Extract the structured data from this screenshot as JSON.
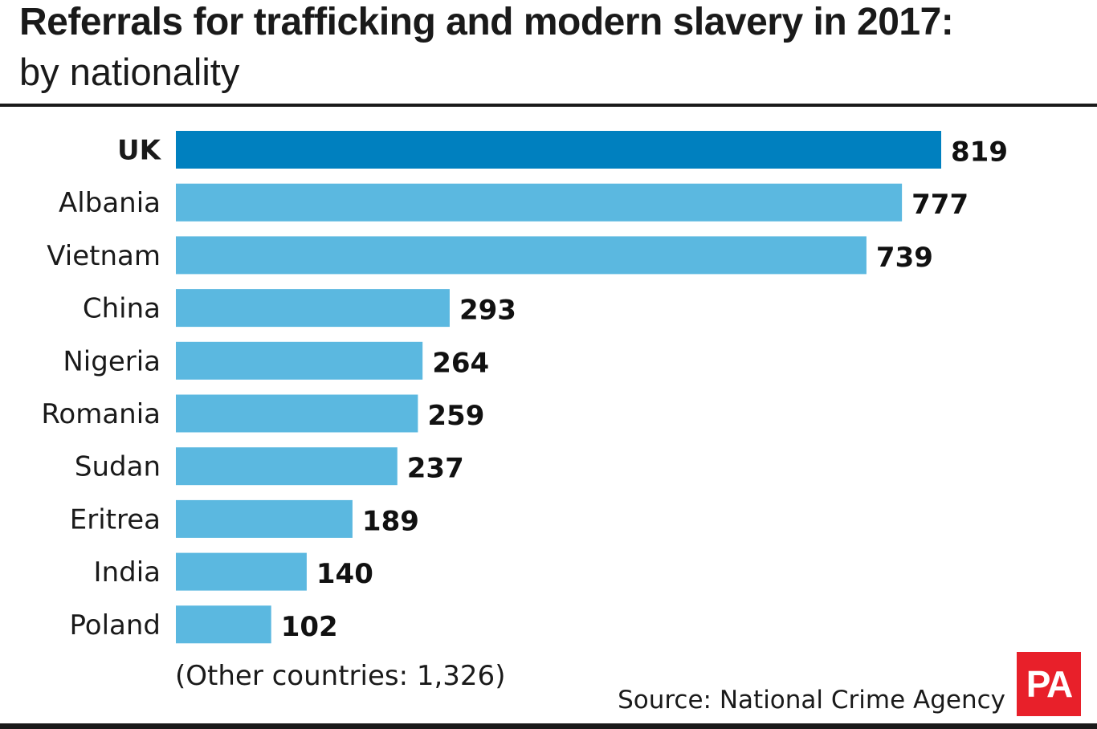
{
  "header": {
    "title": "Referrals for trafficking and modern slavery in 2017:",
    "subtitle": "by nationality"
  },
  "chart_data": {
    "type": "bar",
    "orientation": "horizontal",
    "title": "Referrals for trafficking and modern slavery in 2017:",
    "subtitle": "by nationality",
    "categories": [
      "UK",
      "Albania",
      "Vietnam",
      "China",
      "Nigeria",
      "Romania",
      "Sudan",
      "Eritrea",
      "India",
      "Poland"
    ],
    "values": [
      819,
      777,
      739,
      293,
      264,
      259,
      237,
      189,
      140,
      102
    ],
    "highlight_category": "UK",
    "xlim": [
      0,
      819
    ],
    "grid": false,
    "legend": "none",
    "colors": {
      "highlight": "#0080bf",
      "default": "#5bb8e0"
    },
    "annotation": "(Other countries: 1,326)"
  },
  "footer": {
    "source": "Source: National Crime Agency",
    "logo_text": "PA"
  }
}
